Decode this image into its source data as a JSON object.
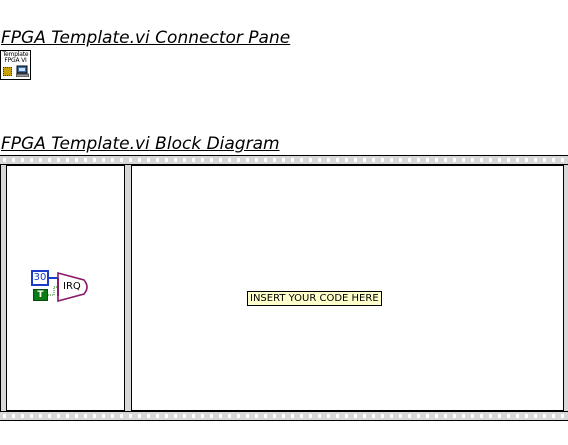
{
  "connector_pane": {
    "heading": "FPGA Template.vi Connector Pane",
    "icon": {
      "name": "vi-icon",
      "line1": "Template",
      "line2": "FPGA VI"
    }
  },
  "block_diagram": {
    "heading": "FPGA Template.vi Block Diagram",
    "structure": "flat-sequence-structure",
    "frames": [
      {
        "name": "frame-1",
        "numeric_constant": "30",
        "boolean_constant": "T",
        "node_label": "IRQ"
      },
      {
        "name": "frame-2",
        "comment": "INSERT YOUR CODE HERE"
      }
    ]
  },
  "colors": {
    "numeric_wire": "#1a3cc8",
    "boolean_wire": "#0a7a14",
    "node_outline": "#8a1a6a",
    "comment_bg": "#ffffcc"
  }
}
